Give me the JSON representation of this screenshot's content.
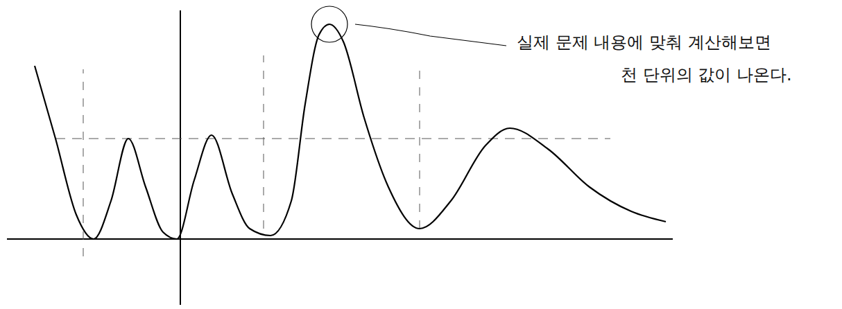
{
  "chart_data": {
    "type": "line",
    "x": [
      -4.2,
      -3.6,
      -3.0,
      -2.5,
      -2.0,
      -1.5,
      -1.0,
      -0.5,
      -0.1,
      0.4,
      0.9,
      1.5,
      2.0,
      2.6,
      3.2,
      3.6,
      4.0,
      4.3,
      4.7,
      5.3,
      6.0,
      6.9,
      7.8,
      8.8,
      9.5,
      10.6,
      11.8,
      13.0,
      14.0
    ],
    "values": [
      5.0,
      2.9,
      0.7,
      0.0,
      1.1,
      2.9,
      1.5,
      0.2,
      0.0,
      1.7,
      3.0,
      1.3,
      0.3,
      0.1,
      1.1,
      3.9,
      5.9,
      6.2,
      5.7,
      3.5,
      1.5,
      0.3,
      1.1,
      2.7,
      3.2,
      2.6,
      1.5,
      0.8,
      0.5
    ],
    "color": "#000000",
    "line_style": "solid",
    "xlim": [
      -5,
      14.2
    ],
    "ylim": [
      -1.9,
      6.6
    ],
    "tick_labels": false,
    "reference_lines": {
      "horizontal": [
        {
          "y": 2.9,
          "x": [
            -3.6,
            12.4
          ]
        }
      ],
      "vertical": [
        {
          "x": -2.8,
          "y": [
            -0.5,
            4.9
          ]
        },
        {
          "x": 2.4,
          "y": [
            0.3,
            5.3
          ]
        },
        {
          "x": 6.9,
          "y": [
            0.3,
            4.9
          ]
        }
      ]
    },
    "annotation": {
      "text": [
        "실제 문제 내용에 맞춰 계산해보면",
        "천 단위의 값이 나온다."
      ],
      "x": 4.3,
      "y": 6.2
    }
  }
}
